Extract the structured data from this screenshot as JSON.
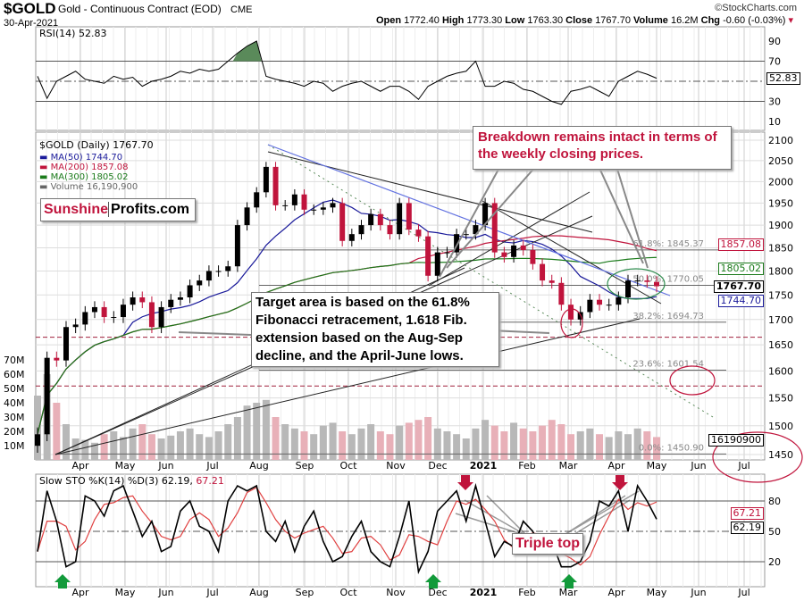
{
  "header": {
    "symbol": "$GOLD",
    "name": "Gold - Continuous Contract (EOD)",
    "exchange": "CME",
    "date": "30-Apr-2021",
    "copyright": "©StockCharts.com",
    "quote": [
      {
        "k": "Open",
        "v": "1772.40"
      },
      {
        "k": "High",
        "v": "1773.30"
      },
      {
        "k": "Low",
        "v": "1763.30"
      },
      {
        "k": "Close",
        "v": "1767.70"
      },
      {
        "k": "Volume",
        "v": "16.2M"
      },
      {
        "k": "Chg",
        "v": "-0.60 (-0.03%)"
      }
    ]
  },
  "logo": {
    "part1": "Sunshine",
    "part2": "Profits.com"
  },
  "annotations": {
    "breakdown": "Breakdown remains intact in terms of the weekly closing prices.",
    "target": "Target area is based on the 61.8% Fibonacci retracement, 1.618 Fib. extension based on the Aug-Sep decline, and the April-June lows.",
    "triple_top": "Triple top"
  },
  "colors": {
    "up": "#000000",
    "down": "#c0143c",
    "ma50": "#1a1a9a",
    "ma200": "#c0143c",
    "ma300": "#1a7a1a",
    "annotation": "#c0143c",
    "arrow_up": "#129a3a",
    "arrow_down": "#c0143c",
    "rsi_fill": "#5a8a5a"
  },
  "chart_data": [
    {
      "type": "line",
      "title": "RSI(14) 52.83",
      "series_label": "RSI(14)",
      "last": "52.83",
      "ylim": [
        0,
        100
      ],
      "yticks": [
        "90",
        "70",
        "30",
        "10"
      ],
      "ref_lines": [
        70,
        50,
        30
      ],
      "values": [
        55,
        33,
        50,
        55,
        60,
        52,
        50,
        48,
        55,
        52,
        54,
        45,
        50,
        52,
        55,
        60,
        58,
        62,
        60,
        62,
        70,
        78,
        85,
        90,
        55,
        52,
        50,
        48,
        45,
        50,
        48,
        40,
        45,
        48,
        50,
        45,
        40,
        45,
        45,
        40,
        32,
        45,
        50,
        55,
        58,
        60,
        70,
        45,
        45,
        50,
        48,
        42,
        40,
        35,
        30,
        27,
        40,
        42,
        45,
        40,
        35,
        50,
        55,
        60,
        57,
        53
      ]
    },
    {
      "type": "candlestick",
      "title": "$GOLD (Daily) 1767.70",
      "scale": "log",
      "ylim": [
        1430,
        2120
      ],
      "yticks": [
        "2100",
        "2050",
        "2000",
        "1950",
        "1900",
        "1850",
        "1800",
        "1750",
        "1700",
        "1650",
        "1600",
        "1550",
        "1500",
        "1450"
      ],
      "legend": [
        {
          "label": "MA(50) 1744.70",
          "color": "#1a1a9a"
        },
        {
          "label": "MA(200) 1857.08",
          "color": "#c0143c"
        },
        {
          "label": "MA(300) 1805.02",
          "color": "#1a7a1a"
        },
        {
          "label": "Volume 16,190,900",
          "color": "#666666"
        }
      ],
      "closes": [
        1485,
        1625,
        1620,
        1685,
        1690,
        1715,
        1725,
        1705,
        1705,
        1730,
        1745,
        1735,
        1685,
        1725,
        1740,
        1745,
        1770,
        1780,
        1800,
        1800,
        1810,
        1900,
        1940,
        1975,
        2035,
        1945,
        1945,
        1970,
        1935,
        1935,
        1940,
        1950,
        1865,
        1880,
        1900,
        1925,
        1900,
        1880,
        1950,
        1890,
        1875,
        1790,
        1840,
        1840,
        1880,
        1880,
        1900,
        1950,
        1840,
        1830,
        1855,
        1845,
        1815,
        1780,
        1775,
        1730,
        1700,
        1715,
        1740,
        1730,
        1730,
        1745,
        1780,
        1780,
        1777,
        1768
      ],
      "volume_ticks": [
        "70M",
        "60M",
        "50M",
        "40M",
        "30M",
        "20M",
        "10M"
      ],
      "volume_millions": [
        45,
        60,
        40,
        25,
        15,
        14,
        12,
        18,
        20,
        16,
        22,
        25,
        18,
        15,
        17,
        20,
        22,
        18,
        16,
        20,
        25,
        30,
        38,
        40,
        42,
        30,
        25,
        22,
        20,
        18,
        24,
        26,
        20,
        18,
        22,
        25,
        20,
        18,
        24,
        26,
        28,
        30,
        22,
        20,
        18,
        15,
        22,
        28,
        24,
        20,
        26,
        22,
        20,
        24,
        28,
        25,
        18,
        20,
        22,
        18,
        16,
        20,
        18,
        22,
        20,
        16
      ],
      "fib_levels": [
        {
          "label": "61.8%: 1845.37",
          "value": 1845.37
        },
        {
          "label": "50.0%: 1770.05",
          "value": 1770.05
        },
        {
          "label": "38.2%: 1694.73",
          "value": 1694.73
        },
        {
          "label": "23.6%: 1601.54",
          "value": 1601.54
        },
        {
          "label": "0.0%: 1450.90",
          "value": 1450.9
        }
      ],
      "dashed_levels": [
        1665,
        1572
      ],
      "right_tags": [
        {
          "label": "1857.08",
          "color": "#c0143c",
          "value": 1857.08
        },
        {
          "label": "1805.02",
          "color": "#1a7a1a",
          "value": 1805.02
        },
        {
          "label": "1767.70",
          "color": "#000000",
          "value": 1767.7,
          "bold": true
        },
        {
          "label": "1744.70",
          "color": "#1a1a9a",
          "value": 1744.7
        },
        {
          "label": "16190900",
          "color": "#000000",
          "value": 1475
        }
      ]
    },
    {
      "type": "line",
      "title": "Slow STO %K(14) %D(3) 62.19, 67.21",
      "series_label": "Slow STO %K(14) %D(3) 62.19,",
      "d_last": "67.21",
      "k_last": "62.19",
      "ylim": [
        0,
        100
      ],
      "yticks": [
        "80",
        "50",
        "20"
      ],
      "ref_lines": [
        80,
        50,
        20
      ],
      "k_values": [
        30,
        90,
        60,
        15,
        20,
        85,
        80,
        65,
        90,
        95,
        70,
        45,
        60,
        30,
        35,
        70,
        80,
        55,
        50,
        30,
        80,
        95,
        90,
        95,
        50,
        40,
        60,
        30,
        55,
        70,
        40,
        20,
        25,
        45,
        60,
        30,
        20,
        15,
        45,
        80,
        10,
        30,
        70,
        80,
        90,
        60,
        95,
        60,
        25,
        40,
        35,
        60,
        50,
        30,
        40,
        15,
        15,
        20,
        40,
        80,
        75,
        90,
        50,
        95,
        80,
        62
      ]
    }
  ],
  "x_axis": {
    "months": [
      "Apr",
      "May",
      "Jun",
      "Jul",
      "Aug",
      "Sep",
      "Oct",
      "Nov",
      "Dec",
      "2021",
      "Feb",
      "Mar",
      "Apr",
      "May",
      "Jun",
      "Jul"
    ]
  }
}
